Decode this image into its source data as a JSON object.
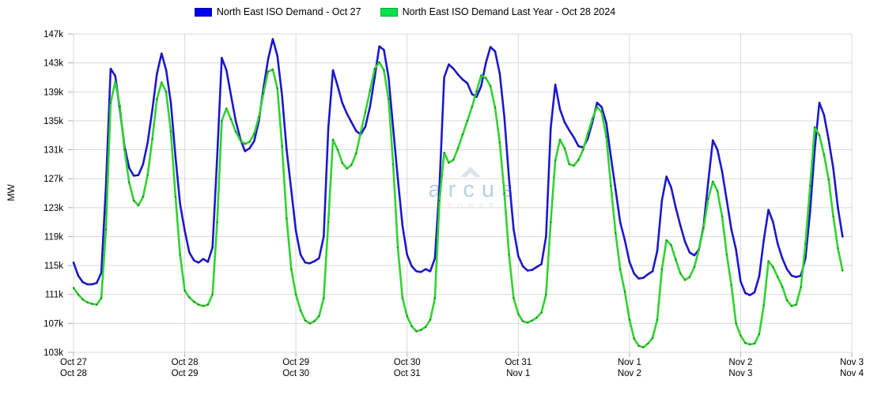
{
  "legend": {
    "items": [
      {
        "label": "North East ISO Demand - Oct 27",
        "swatch_fill": "#0000f0",
        "swatch_border": "#0000a8"
      },
      {
        "label": "North East ISO Demand Last Year - Oct 28 2024",
        "swatch_fill": "#00e24a",
        "swatch_border": "#00a832"
      }
    ]
  },
  "watermark": {
    "brand": "arcus",
    "sub": "POWER",
    "chevron_color": "#d7e5ef"
  },
  "chart_data": {
    "type": "line",
    "title": "",
    "xlabel": "",
    "ylabel": "MW",
    "value_unit": "thousand MW (k)",
    "ylim": [
      103,
      147
    ],
    "y_tick_step": 4,
    "y_ticks": [
      "147k",
      "143k",
      "139k",
      "135k",
      "131k",
      "127k",
      "123k",
      "119k",
      "115k",
      "111k",
      "107k",
      "103k"
    ],
    "x_ticks": [
      {
        "top": "Oct 27",
        "bottom": "Oct 28"
      },
      {
        "top": "Oct 28",
        "bottom": "Oct 29"
      },
      {
        "top": "Oct 29",
        "bottom": "Oct 30"
      },
      {
        "top": "Oct 30",
        "bottom": "Oct 31"
      },
      {
        "top": "Oct 31",
        "bottom": "Nov 1"
      },
      {
        "top": "Nov 1",
        "bottom": "Nov 2"
      },
      {
        "top": "Nov 2",
        "bottom": "Nov 3"
      },
      {
        "top": "Nov 3",
        "bottom": "Nov 4"
      }
    ],
    "x_unit": "hour",
    "hours_per_day": 24,
    "grid": true,
    "markers": true,
    "legend_position": "top",
    "grid_color": "#d9d9d9",
    "tick_color": "#b0b0b0",
    "series": [
      {
        "name": "North East ISO Demand - Oct 27",
        "color": "#1c17d1",
        "values": [
          115.4,
          113.6,
          112.7,
          112.4,
          112.4,
          112.6,
          114.0,
          126.0,
          142.2,
          141.2,
          136.5,
          131.5,
          128.5,
          127.4,
          127.5,
          129.0,
          132.0,
          136.5,
          141.5,
          144.3,
          142.0,
          137.5,
          130.0,
          123.5,
          119.8,
          116.8,
          115.7,
          115.4,
          115.9,
          115.5,
          117.5,
          130.0,
          143.7,
          142.0,
          138.5,
          135.0,
          132.5,
          130.8,
          131.2,
          132.2,
          135.0,
          139.5,
          143.5,
          146.3,
          144.0,
          138.5,
          131.0,
          125.4,
          119.8,
          116.5,
          115.4,
          115.3,
          115.6,
          116.0,
          119.0,
          134.0,
          142.0,
          139.8,
          137.5,
          136.0,
          134.8,
          133.6,
          133.1,
          134.2,
          137.0,
          141.0,
          145.3,
          144.8,
          141.0,
          134.0,
          127.0,
          120.5,
          116.5,
          114.9,
          114.2,
          114.1,
          114.5,
          114.2,
          116.0,
          126.0,
          141.0,
          142.8,
          142.2,
          141.4,
          140.7,
          140.2,
          138.7,
          138.3,
          139.8,
          143.0,
          145.2,
          144.6,
          141.5,
          135.5,
          127.0,
          120.0,
          116.3,
          114.9,
          114.3,
          114.4,
          114.8,
          115.2,
          119.0,
          134.0,
          140.0,
          136.6,
          134.8,
          133.7,
          132.7,
          131.5,
          131.3,
          132.5,
          134.8,
          137.5,
          136.9,
          134.7,
          130.0,
          125.5,
          121.0,
          118.5,
          115.5,
          113.9,
          113.2,
          113.3,
          113.8,
          114.2,
          117.0,
          124.0,
          127.3,
          125.8,
          123.0,
          120.5,
          118.3,
          116.8,
          116.4,
          117.2,
          120.5,
          126.5,
          132.3,
          131.0,
          128.0,
          124.0,
          120.0,
          117.2,
          112.8,
          111.2,
          110.9,
          111.3,
          113.5,
          118.5,
          122.7,
          121.0,
          118.0,
          116.0,
          114.5,
          113.6,
          113.4,
          113.6,
          116.0,
          122.5,
          131.0,
          137.5,
          135.8,
          132.4,
          128.4,
          123.0,
          119.0
        ]
      },
      {
        "name": "North East ISO Demand Last Year - Oct 28 2024",
        "color": "#2fd32f",
        "values": [
          111.9,
          111.0,
          110.3,
          109.9,
          109.7,
          109.6,
          110.5,
          120.0,
          137.5,
          140.4,
          137.0,
          131.0,
          126.5,
          124.0,
          123.3,
          124.5,
          127.5,
          132.5,
          138.0,
          140.3,
          139.0,
          133.5,
          124.5,
          116.5,
          111.5,
          110.6,
          110.0,
          109.6,
          109.4,
          109.6,
          111.0,
          121.0,
          135.0,
          136.7,
          135.2,
          133.5,
          132.3,
          131.8,
          132.1,
          133.2,
          135.5,
          138.8,
          141.8,
          142.1,
          139.5,
          131.5,
          121.5,
          114.5,
          111.0,
          108.8,
          107.4,
          107.0,
          107.3,
          108.0,
          110.5,
          121.0,
          132.4,
          131.0,
          129.2,
          128.4,
          128.9,
          130.5,
          133.4,
          136.2,
          139.2,
          142.2,
          143.1,
          142.0,
          138.0,
          129.0,
          117.5,
          110.5,
          108.0,
          106.6,
          105.9,
          106.1,
          106.5,
          107.5,
          110.5,
          124.0,
          130.6,
          129.2,
          129.6,
          131.2,
          133.1,
          135.0,
          136.9,
          139.1,
          141.3,
          140.9,
          139.8,
          136.8,
          132.0,
          125.0,
          116.5,
          110.5,
          108.3,
          107.3,
          107.1,
          107.4,
          107.8,
          108.5,
          111.0,
          121.0,
          129.5,
          132.4,
          131.2,
          129.0,
          128.8,
          129.6,
          131.0,
          133.2,
          135.3,
          136.9,
          136.2,
          132.8,
          126.0,
          119.5,
          114.5,
          111.4,
          107.5,
          104.9,
          103.9,
          103.7,
          104.2,
          105.0,
          107.5,
          114.5,
          118.5,
          117.8,
          115.8,
          113.9,
          113.0,
          113.4,
          114.8,
          117.2,
          120.2,
          124.2,
          126.6,
          125.3,
          121.8,
          116.5,
          112.3,
          107.0,
          105.3,
          104.3,
          104.1,
          104.2,
          105.5,
          109.5,
          115.6,
          114.8,
          113.4,
          112.1,
          110.2,
          109.4,
          109.6,
          112.0,
          118.0,
          126.0,
          134.1,
          133.0,
          130.3,
          126.9,
          121.8,
          117.4,
          114.3
        ]
      }
    ]
  }
}
